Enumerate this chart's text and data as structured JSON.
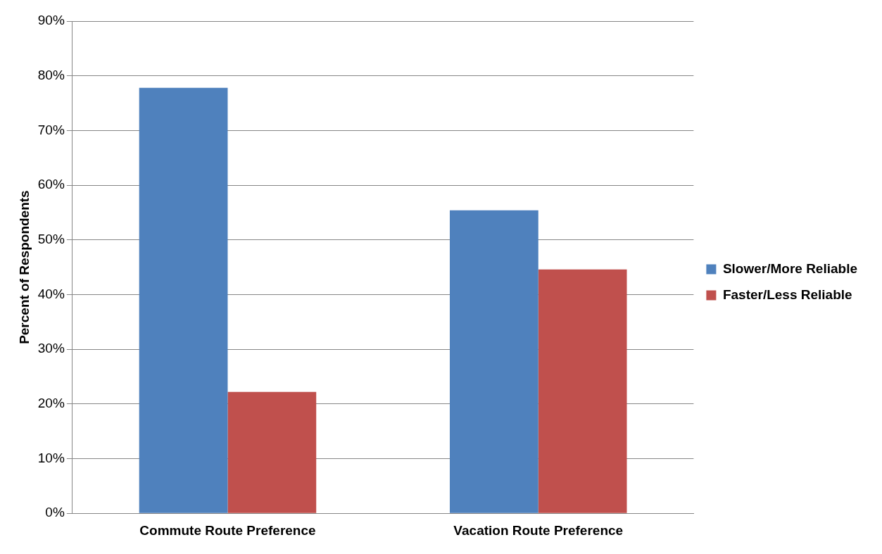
{
  "chart_data": {
    "type": "bar",
    "ylabel": "Percent of Respondents",
    "categories": [
      "Commute Route Preference",
      "Vacation Route Preference"
    ],
    "series": [
      {
        "name": "Slower/More Reliable",
        "color": "#4f81bd",
        "values": [
          77.8,
          55.4
        ]
      },
      {
        "name": "Faster/Less Reliable",
        "color": "#c0504d",
        "values": [
          22.2,
          44.6
        ]
      }
    ],
    "ylim": [
      0,
      90
    ],
    "yticks": [
      {
        "value": 0,
        "label": "0%"
      },
      {
        "value": 10,
        "label": "10%"
      },
      {
        "value": 20,
        "label": "20%"
      },
      {
        "value": 30,
        "label": "30%"
      },
      {
        "value": 40,
        "label": "40%"
      },
      {
        "value": 50,
        "label": "50%"
      },
      {
        "value": 60,
        "label": "60%"
      },
      {
        "value": 70,
        "label": "70%"
      },
      {
        "value": 80,
        "label": "80%"
      },
      {
        "value": 90,
        "label": "90%"
      }
    ],
    "grid": "y",
    "legend": "right"
  }
}
